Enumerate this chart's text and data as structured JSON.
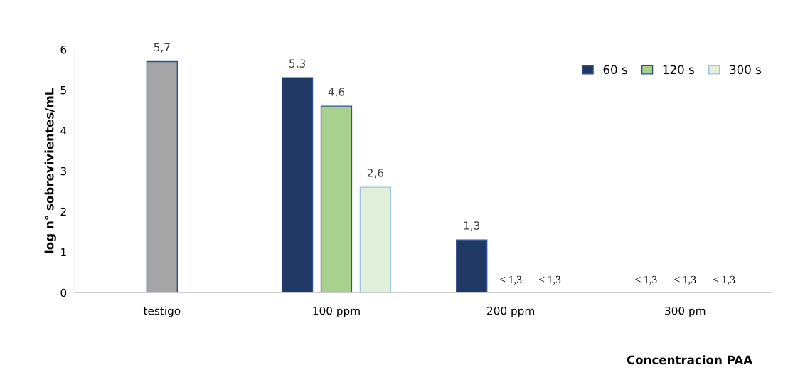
{
  "chart_data": {
    "type": "bar",
    "categories": [
      "testigo",
      "100 ppm",
      "200 ppm",
      "300 pm"
    ],
    "series": [
      {
        "name": "60 s",
        "color": "#203864",
        "values": [
          null,
          5.3,
          1.3,
          null
        ],
        "value_labels": [
          null,
          "5,3",
          "1,3",
          null
        ]
      },
      {
        "name": "120 s",
        "color": "#a9d18e",
        "colors": [
          "#a5a5a5",
          "#a9d18e",
          "#a9d18e",
          "#a9d18e"
        ],
        "values": [
          5.7,
          4.6,
          null,
          null
        ],
        "value_labels": [
          "5,7",
          "4,6",
          null,
          null
        ]
      },
      {
        "name": "300 s",
        "color": "#e2efda",
        "values": [
          null,
          2.6,
          null,
          null
        ],
        "value_labels": [
          null,
          "2,6",
          null,
          null
        ]
      }
    ],
    "ylim": [
      0,
      6
    ],
    "yticks": [
      0,
      1,
      2,
      3,
      4,
      5,
      6
    ],
    "ylabel": "log n° sobrevivientes/mL",
    "xlabel": "Concentracion PAA",
    "annotations": [
      "< 1,3",
      "< 1,3",
      "< 1,3",
      "< 1,3",
      "< 1,3"
    ],
    "legend": "top right",
    "grid": false
  }
}
